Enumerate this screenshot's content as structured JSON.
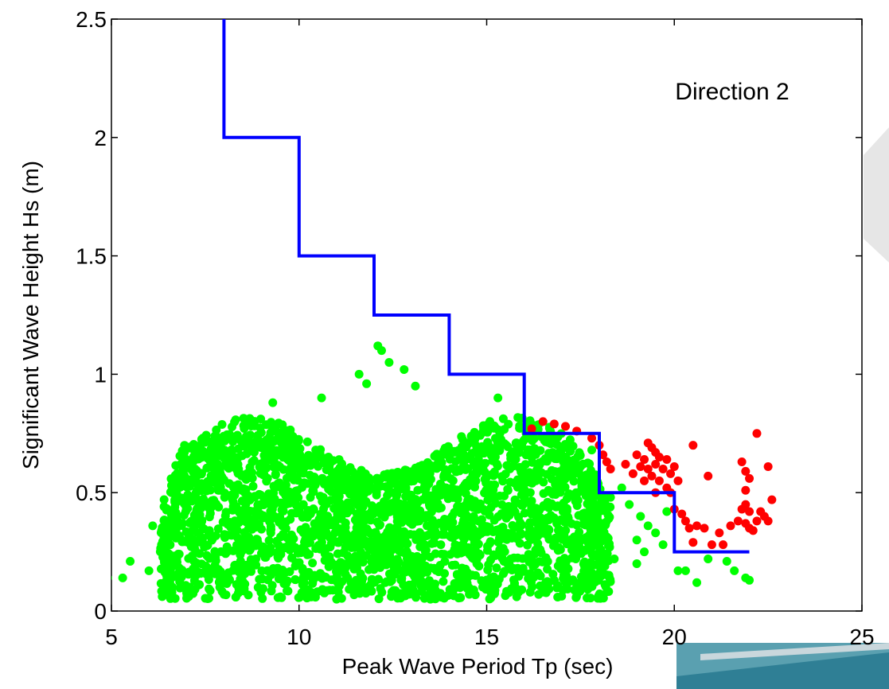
{
  "chart_data": {
    "type": "scatter",
    "title": "",
    "xlabel": "Peak Wave Period Tp (sec)",
    "ylabel": "Significant Wave Height Hs (m)",
    "xlim": [
      5,
      25
    ],
    "ylim": [
      0,
      2.5
    ],
    "x_ticks": [
      5,
      10,
      15,
      20,
      25
    ],
    "y_ticks": [
      0,
      0.5,
      1,
      1.5,
      2,
      2.5
    ],
    "x_tick_labels": [
      "5",
      "10",
      "15",
      "20",
      "25"
    ],
    "y_tick_labels": [
      "0",
      "0.5",
      "1",
      "1.5",
      "2",
      "2.5"
    ],
    "annotation": "Direction 2",
    "grid": false,
    "colors": {
      "threshold": "#0000ff",
      "below": "#00ff00",
      "above": "#ff0000"
    },
    "threshold_line": {
      "x": [
        8,
        8,
        10,
        10,
        12,
        12,
        14,
        14,
        16,
        16,
        18,
        18,
        20,
        20,
        22
      ],
      "y": [
        2.5,
        2.0,
        2.0,
        1.5,
        1.5,
        1.25,
        1.25,
        1.0,
        1.0,
        0.75,
        0.75,
        0.5,
        0.5,
        0.25,
        0.25
      ]
    },
    "cluster_green": {
      "x_range": [
        6.3,
        18.3
      ],
      "y_range": [
        0.05,
        0.85
      ],
      "extremes": [
        {
          "x": 12.1,
          "y": 1.12
        },
        {
          "x": 12.2,
          "y": 1.1
        },
        {
          "x": 12.4,
          "y": 1.05
        },
        {
          "x": 12.8,
          "y": 1.02
        },
        {
          "x": 11.6,
          "y": 1.0
        },
        {
          "x": 11.8,
          "y": 0.96
        },
        {
          "x": 13.1,
          "y": 0.95
        },
        {
          "x": 15.3,
          "y": 0.9
        },
        {
          "x": 10.6,
          "y": 0.9
        },
        {
          "x": 9.3,
          "y": 0.88
        },
        {
          "x": 16.2,
          "y": 0.75
        },
        {
          "x": 17.2,
          "y": 0.7
        },
        {
          "x": 17.8,
          "y": 0.68
        },
        {
          "x": 4.9,
          "y": 0.14
        },
        {
          "x": 5.3,
          "y": 0.14
        },
        {
          "x": 5.5,
          "y": 0.21
        },
        {
          "x": 6.0,
          "y": 0.17
        },
        {
          "x": 6.1,
          "y": 0.36
        },
        {
          "x": 18.3,
          "y": 0.48
        },
        {
          "x": 18.6,
          "y": 0.52
        },
        {
          "x": 18.8,
          "y": 0.45
        },
        {
          "x": 19.1,
          "y": 0.4
        },
        {
          "x": 19.3,
          "y": 0.36
        },
        {
          "x": 19.5,
          "y": 0.33
        },
        {
          "x": 19.0,
          "y": 0.3
        },
        {
          "x": 19.7,
          "y": 0.28
        },
        {
          "x": 19.8,
          "y": 0.42
        },
        {
          "x": 19.2,
          "y": 0.25
        },
        {
          "x": 18.4,
          "y": 0.22
        },
        {
          "x": 18.1,
          "y": 0.16
        },
        {
          "x": 19.0,
          "y": 0.2
        },
        {
          "x": 20.1,
          "y": 0.17
        },
        {
          "x": 20.3,
          "y": 0.17
        },
        {
          "x": 20.6,
          "y": 0.12
        },
        {
          "x": 20.9,
          "y": 0.22
        },
        {
          "x": 21.4,
          "y": 0.21
        },
        {
          "x": 21.6,
          "y": 0.17
        },
        {
          "x": 21.9,
          "y": 0.14
        },
        {
          "x": 22.0,
          "y": 0.13
        },
        {
          "x": 17.5,
          "y": 0.09
        },
        {
          "x": 16.5,
          "y": 0.08
        },
        {
          "x": 15.8,
          "y": 0.06
        },
        {
          "x": 13.5,
          "y": 0.05
        },
        {
          "x": 9.5,
          "y": 0.06
        },
        {
          "x": 7.0,
          "y": 0.09
        },
        {
          "x": 8.0,
          "y": 0.07
        },
        {
          "x": 11.0,
          "y": 0.05
        }
      ]
    },
    "cluster_red": {
      "points": [
        {
          "x": 16.5,
          "y": 0.8
        },
        {
          "x": 16.8,
          "y": 0.79
        },
        {
          "x": 16.2,
          "y": 0.77
        },
        {
          "x": 17.1,
          "y": 0.78
        },
        {
          "x": 17.4,
          "y": 0.76
        },
        {
          "x": 17.8,
          "y": 0.73
        },
        {
          "x": 18.0,
          "y": 0.7
        },
        {
          "x": 18.1,
          "y": 0.66
        },
        {
          "x": 18.2,
          "y": 0.63
        },
        {
          "x": 18.3,
          "y": 0.6
        },
        {
          "x": 19.0,
          "y": 0.66
        },
        {
          "x": 19.2,
          "y": 0.64
        },
        {
          "x": 19.3,
          "y": 0.71
        },
        {
          "x": 19.4,
          "y": 0.69
        },
        {
          "x": 19.5,
          "y": 0.67
        },
        {
          "x": 19.6,
          "y": 0.65
        },
        {
          "x": 19.1,
          "y": 0.61
        },
        {
          "x": 19.3,
          "y": 0.6
        },
        {
          "x": 19.5,
          "y": 0.62
        },
        {
          "x": 19.7,
          "y": 0.6
        },
        {
          "x": 19.8,
          "y": 0.64
        },
        {
          "x": 19.9,
          "y": 0.58
        },
        {
          "x": 19.4,
          "y": 0.57
        },
        {
          "x": 19.2,
          "y": 0.55
        },
        {
          "x": 19.6,
          "y": 0.55
        },
        {
          "x": 19.8,
          "y": 0.52
        },
        {
          "x": 19.5,
          "y": 0.5
        },
        {
          "x": 19.9,
          "y": 0.5
        },
        {
          "x": 18.9,
          "y": 0.58
        },
        {
          "x": 18.7,
          "y": 0.62
        },
        {
          "x": 20.0,
          "y": 0.61
        },
        {
          "x": 20.1,
          "y": 0.55
        },
        {
          "x": 20.5,
          "y": 0.7
        },
        {
          "x": 20.9,
          "y": 0.57
        },
        {
          "x": 20.0,
          "y": 0.43
        },
        {
          "x": 20.2,
          "y": 0.41
        },
        {
          "x": 20.3,
          "y": 0.38
        },
        {
          "x": 20.4,
          "y": 0.35
        },
        {
          "x": 20.6,
          "y": 0.36
        },
        {
          "x": 20.8,
          "y": 0.35
        },
        {
          "x": 20.5,
          "y": 0.29
        },
        {
          "x": 21.0,
          "y": 0.28
        },
        {
          "x": 21.3,
          "y": 0.28
        },
        {
          "x": 21.2,
          "y": 0.33
        },
        {
          "x": 21.5,
          "y": 0.36
        },
        {
          "x": 21.7,
          "y": 0.38
        },
        {
          "x": 21.9,
          "y": 0.37
        },
        {
          "x": 22.0,
          "y": 0.35
        },
        {
          "x": 22.1,
          "y": 0.34
        },
        {
          "x": 22.2,
          "y": 0.38
        },
        {
          "x": 22.4,
          "y": 0.4
        },
        {
          "x": 22.5,
          "y": 0.38
        },
        {
          "x": 21.8,
          "y": 0.43
        },
        {
          "x": 22.0,
          "y": 0.42
        },
        {
          "x": 22.3,
          "y": 0.42
        },
        {
          "x": 21.9,
          "y": 0.45
        },
        {
          "x": 21.9,
          "y": 0.51
        },
        {
          "x": 22.0,
          "y": 0.56
        },
        {
          "x": 21.9,
          "y": 0.59
        },
        {
          "x": 21.8,
          "y": 0.63
        },
        {
          "x": 22.2,
          "y": 0.75
        },
        {
          "x": 22.5,
          "y": 0.61
        },
        {
          "x": 22.6,
          "y": 0.47
        }
      ]
    }
  }
}
